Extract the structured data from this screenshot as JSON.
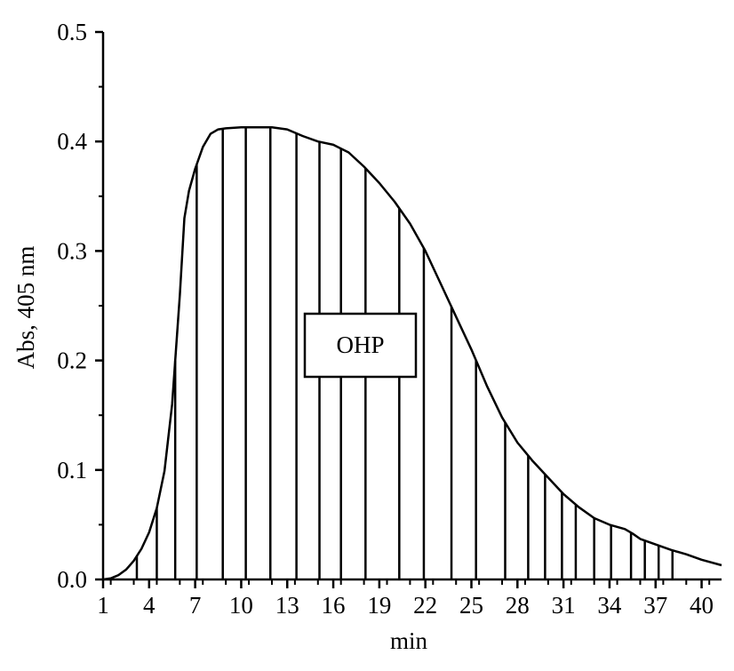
{
  "chart_data": {
    "type": "area",
    "title": "",
    "xlabel": "min",
    "ylabel": "Abs, 405 nm",
    "xlim": [
      1,
      41.3
    ],
    "ylim": [
      0,
      0.5
    ],
    "x_ticks": [
      "1",
      "4",
      "7",
      "10",
      "13",
      "16",
      "19",
      "22",
      "25",
      "28",
      "31",
      "34",
      "37",
      "40"
    ],
    "y_ticks": [
      "0.0",
      "0.1",
      "0.2",
      "0.3",
      "0.4",
      "0.5"
    ],
    "grid": false,
    "legend": "none",
    "annotation": "OHP",
    "series": [
      {
        "x": [
          1,
          1.5,
          2,
          2.5,
          3,
          3.5,
          4,
          4.5,
          5,
          5.5,
          6,
          6.3,
          6.6,
          7,
          7.5,
          8,
          8.5,
          9,
          10,
          11,
          12,
          13,
          14,
          15,
          16,
          17,
          18,
          19,
          20,
          21,
          22,
          23,
          24,
          25,
          26,
          27,
          28,
          29,
          30,
          31,
          32,
          33,
          34,
          35,
          35.5,
          36,
          37,
          38,
          39,
          40,
          41.3
        ],
        "y": [
          0.0,
          0.001,
          0.004,
          0.009,
          0.017,
          0.028,
          0.043,
          0.065,
          0.099,
          0.16,
          0.26,
          0.33,
          0.355,
          0.375,
          0.395,
          0.407,
          0.411,
          0.412,
          0.413,
          0.413,
          0.413,
          0.411,
          0.405,
          0.4,
          0.397,
          0.39,
          0.377,
          0.362,
          0.345,
          0.325,
          0.3,
          0.27,
          0.24,
          0.21,
          0.177,
          0.148,
          0.125,
          0.108,
          0.093,
          0.078,
          0.066,
          0.056,
          0.05,
          0.046,
          0.042,
          0.037,
          0.032,
          0.027,
          0.023,
          0.018,
          0.013
        ]
      }
    ],
    "fraction_lines_x": [
      3.2,
      4.5,
      5.7,
      7.1,
      8.8,
      10.3,
      11.9,
      13.6,
      15.1,
      16.5,
      18.1,
      20.3,
      21.9,
      23.7,
      25.3,
      27.2,
      28.7,
      29.8,
      30.9,
      31.8,
      33.0,
      34.1,
      35.4,
      36.3,
      37.2,
      38.1
    ]
  }
}
